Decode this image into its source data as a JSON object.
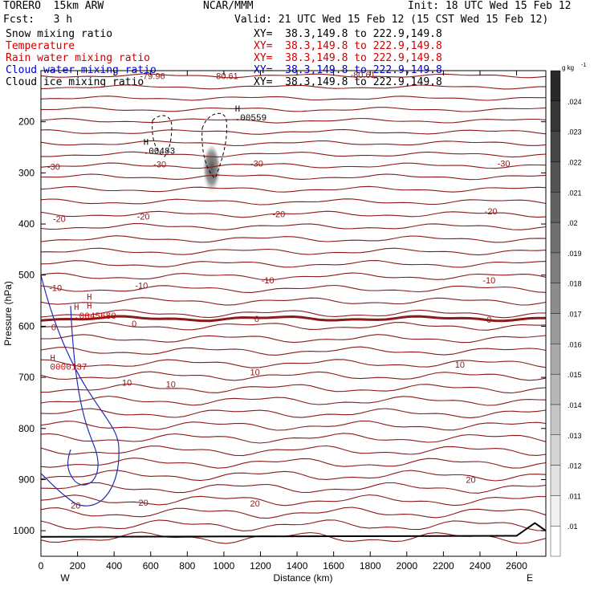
{
  "header": {
    "model": "TORERO  15km ARW",
    "center": "NCAR/MMM",
    "init": "Init: 18 UTC Wed 15 Feb 12",
    "fcst": "Fcst:   3 h",
    "valid": "Valid: 21 UTC Wed 15 Feb 12 (15 CST Wed 15 Feb 12)"
  },
  "fields": [
    {
      "name": "Snow mixing ratio",
      "xy": "XY=  38.3,149.8 to 222.9,149.8",
      "color": "#000000"
    },
    {
      "name": "Temperature",
      "xy": "XY=  38.3,149.8 to 222.9,149.8",
      "color": "#cc0000"
    },
    {
      "name": "Rain water mixing ratio",
      "xy": "XY=  38.3,149.8 to 222.9,149.8",
      "color": "#cc0000"
    },
    {
      "name": "Cloud water mixing ratio",
      "xy": "XY=  38.3,149.8 to 222.9,149.8",
      "color": "#0000cc"
    },
    {
      "name": "Cloud ice mixing ratio",
      "xy": "XY=  38.3,149.8 to 222.9,149.8",
      "color": "#000000"
    }
  ],
  "colors": {
    "temp": "#8b1a1a",
    "rain": "#cc0000",
    "cloudwater": "#1f2fb8",
    "ice": "#000000",
    "frame": "#000000"
  },
  "chart_data": {
    "type": "cross-section",
    "xlabel": "Distance (km)",
    "ylabel": "Pressure (hPa)",
    "xlim": [
      0,
      2760
    ],
    "ylim": [
      1050,
      100
    ],
    "x_ticks": [
      0,
      200,
      400,
      600,
      800,
      1000,
      1200,
      1400,
      1600,
      1800,
      2000,
      2200,
      2400,
      2600
    ],
    "y_ticks": [
      200,
      300,
      400,
      500,
      600,
      700,
      800,
      900,
      1000
    ],
    "x_ends": [
      "W",
      "E"
    ],
    "colorbar": {
      "unit": "g kg",
      "unit_exp": "-1",
      "ticks": [
        ".01",
        ".011",
        ".012",
        ".013",
        ".014",
        ".015",
        ".016",
        ".017",
        ".018",
        ".019",
        ".02",
        ".021",
        ".022",
        ".023",
        ".024"
      ]
    },
    "temperature_labels": [
      {
        "text": "-79.96",
        "x": 610,
        "p": 110
      },
      {
        "text": "-80.61",
        "x": 1010,
        "p": 110
      },
      {
        "text": "-80.61",
        "x": 1760,
        "p": 108
      },
      {
        "text": "-30",
        "x": 70,
        "p": 288
      },
      {
        "text": "-30",
        "x": 650,
        "p": 283
      },
      {
        "text": "-30",
        "x": 1180,
        "p": 281
      },
      {
        "text": "-30",
        "x": 2530,
        "p": 281
      },
      {
        "text": "-20",
        "x": 100,
        "p": 390
      },
      {
        "text": "-20",
        "x": 560,
        "p": 385
      },
      {
        "text": "-20",
        "x": 1300,
        "p": 380
      },
      {
        "text": "-20",
        "x": 2460,
        "p": 375
      },
      {
        "text": "-10",
        "x": 80,
        "p": 525
      },
      {
        "text": "-10",
        "x": 550,
        "p": 520
      },
      {
        "text": "-10",
        "x": 1240,
        "p": 510
      },
      {
        "text": "-10",
        "x": 2450,
        "p": 510
      },
      {
        "text": "0",
        "x": 70,
        "p": 602
      },
      {
        "text": "0",
        "x": 510,
        "p": 595
      },
      {
        "text": "0",
        "x": 1180,
        "p": 585
      },
      {
        "text": "0",
        "x": 2450,
        "p": 587
      },
      {
        "text": "10",
        "x": 470,
        "p": 710
      },
      {
        "text": "10",
        "x": 710,
        "p": 713
      },
      {
        "text": "10",
        "x": 1170,
        "p": 690
      },
      {
        "text": "10",
        "x": 2290,
        "p": 675
      },
      {
        "text": "20",
        "x": 190,
        "p": 950
      },
      {
        "text": "20",
        "x": 560,
        "p": 945
      },
      {
        "text": "20",
        "x": 1170,
        "p": 946
      },
      {
        "text": "20",
        "x": 2350,
        "p": 900
      }
    ],
    "maxima": [
      {
        "mark": "H",
        "value": ".00483",
        "x": 560,
        "p": 245,
        "color": "#000000"
      },
      {
        "mark": "H",
        "value": ".00559",
        "x": 1060,
        "p": 180,
        "color": "#000000"
      },
      {
        "mark": "H",
        "value": "H",
        "x": 250,
        "p": 548,
        "color": "#cc0000"
      },
      {
        "mark": "H",
        "value": ".0045680",
        "x": 180,
        "p": 568,
        "color": "#cc0000"
      },
      {
        "mark": "H",
        "value": "0000137",
        "x": 50,
        "p": 668,
        "color": "#cc0000"
      }
    ],
    "snow_shading": {
      "x_center": 920,
      "p_top": 260,
      "p_bottom": 330,
      "max": 0.0056
    },
    "freezing_level_hpa": 585
  }
}
